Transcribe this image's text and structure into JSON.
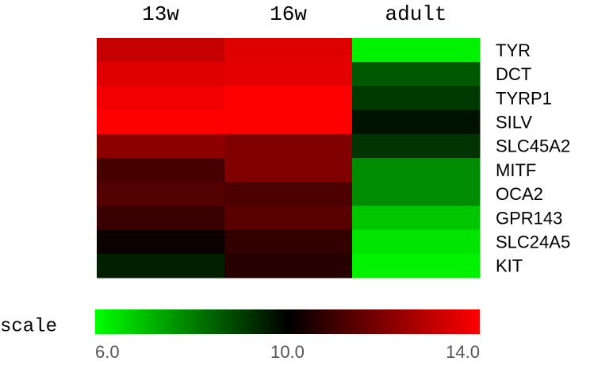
{
  "chart_data": {
    "type": "heatmap",
    "columns": [
      "13w",
      "16w",
      "adult"
    ],
    "rows": [
      "TYR",
      "DCT",
      "TYRP1",
      "SILV",
      "SLC45A2",
      "MITF",
      "OCA2",
      "GPR143",
      "SLC24A5",
      "KIT"
    ],
    "values": [
      [
        13.1,
        13.5,
        6.2
      ],
      [
        13.5,
        13.6,
        8.6
      ],
      [
        13.8,
        14.0,
        9.1
      ],
      [
        14.0,
        14.0,
        9.7
      ],
      [
        12.2,
        12.0,
        9.2
      ],
      [
        11.1,
        12.0,
        7.8
      ],
      [
        11.3,
        11.2,
        7.8
      ],
      [
        10.9,
        11.4,
        6.9
      ],
      [
        10.2,
        10.8,
        6.4
      ],
      [
        9.5,
        10.6,
        6.2
      ]
    ],
    "colormap": [
      "#00ff00",
      "#000000",
      "#ff0000"
    ],
    "clim": [
      6,
      14
    ],
    "cticks": [
      {
        "value": 6,
        "label": "6.0"
      },
      {
        "value": 10,
        "label": "10.0"
      },
      {
        "value": 14,
        "label": "14.0"
      }
    ],
    "colorbar_label": "scale"
  }
}
